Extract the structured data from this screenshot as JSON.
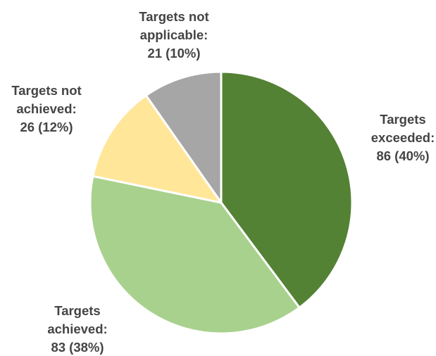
{
  "chart_data": {
    "type": "pie",
    "title": "",
    "slices": [
      {
        "label": "Targets exceeded",
        "value": 86,
        "percent": "40%",
        "color": "#548235",
        "label_lines": [
          "Targets",
          "exceeded:",
          "86 (40%)"
        ]
      },
      {
        "label": "Targets achieved",
        "value": 83,
        "percent": "38%",
        "color": "#A9D18E",
        "label_lines": [
          "Targets",
          "achieved:",
          "83 (38%)"
        ]
      },
      {
        "label": "Targets not achieved",
        "value": 26,
        "percent": "12%",
        "color": "#FFE699",
        "label_lines": [
          "Targets not",
          "achieved:",
          "26 (12%)"
        ]
      },
      {
        "label": "Targets not applicable",
        "value": 21,
        "percent": "10%",
        "color": "#A6A6A6",
        "label_lines": [
          "Targets not",
          "applicable:",
          "21 (10%)"
        ]
      }
    ],
    "start_angle": "12 o'clock",
    "direction": "clockwise",
    "legend": "none",
    "label_position": "outside"
  }
}
